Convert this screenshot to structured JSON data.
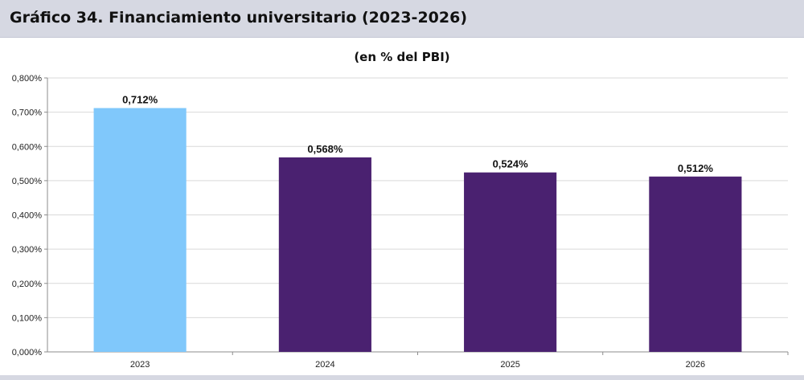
{
  "header": {
    "title": "Gráfico 34. Financiamiento universitario (2023-2026)"
  },
  "chart_data": {
    "type": "bar",
    "title": "",
    "subtitle": "(en % del PBI)",
    "categories": [
      "2023",
      "2024",
      "2025",
      "2026"
    ],
    "values": [
      0.712,
      0.568,
      0.524,
      0.512
    ],
    "data_labels": [
      "0,712%",
      "0,568%",
      "0,524%",
      "0,512%"
    ],
    "bar_colors": [
      "#80c8fb",
      "#4a2170",
      "#4a2170",
      "#4a2170"
    ],
    "xlabel": "",
    "ylabel": "",
    "ylim": [
      0,
      0.8
    ],
    "yticks": [
      0,
      0.1,
      0.2,
      0.3,
      0.4,
      0.5,
      0.6,
      0.7,
      0.8
    ],
    "ytick_labels": [
      "0,000%",
      "0,100%",
      "0,200%",
      "0,300%",
      "0,400%",
      "0,500%",
      "0,600%",
      "0,700%",
      "0,800%"
    ],
    "grid": true,
    "legend": "none"
  },
  "colors": {
    "header_background": "#d6d8e2",
    "gridline": "#d9d9d9",
    "axis": "#8c8c8c"
  }
}
